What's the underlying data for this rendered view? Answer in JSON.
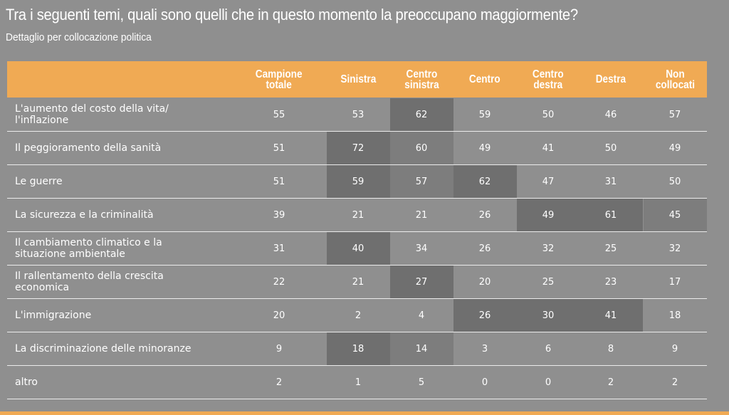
{
  "title": "Tra i seguenti temi, quali sono quelli che in questo momento la preoccupano maggiormente?",
  "subtitle": "Dettaglio per collocazione politica",
  "chart_data": {
    "type": "table",
    "columns": [
      "Campione\ntotale",
      "Sinistra",
      "Centro\nsinistra",
      "Centro",
      "Centro\ndestra",
      "Destra",
      "Non\ncollocati"
    ],
    "rows": [
      {
        "label": "L'aumento del costo della vita/\nl'inflazione",
        "values": [
          55,
          53,
          62,
          59,
          50,
          46,
          57
        ],
        "highlight": [
          0,
          0,
          1,
          0,
          0,
          0,
          0
        ]
      },
      {
        "label": "Il peggioramento della sanità",
        "values": [
          51,
          72,
          60,
          49,
          41,
          50,
          49
        ],
        "highlight": [
          0,
          1,
          2,
          0,
          0,
          0,
          0
        ]
      },
      {
        "label": "Le guerre",
        "values": [
          51,
          59,
          57,
          62,
          47,
          31,
          50
        ],
        "highlight": [
          0,
          1,
          2,
          1,
          0,
          0,
          0
        ]
      },
      {
        "label": "La sicurezza e la criminalità",
        "values": [
          39,
          21,
          21,
          26,
          49,
          61,
          45
        ],
        "highlight": [
          0,
          0,
          0,
          0,
          1,
          1,
          2
        ]
      },
      {
        "label": "Il cambiamento climatico e la\nsituazione ambientale",
        "values": [
          31,
          40,
          34,
          26,
          32,
          25,
          32
        ],
        "highlight": [
          0,
          1,
          0,
          0,
          0,
          0,
          0
        ]
      },
      {
        "label": "Il rallentamento della crescita\neconomica",
        "values": [
          22,
          21,
          27,
          20,
          25,
          23,
          17
        ],
        "highlight": [
          0,
          0,
          1,
          0,
          0,
          0,
          0
        ]
      },
      {
        "label": "L'immigrazione",
        "values": [
          20,
          2,
          4,
          26,
          30,
          41,
          18
        ],
        "highlight": [
          0,
          0,
          0,
          1,
          1,
          1,
          0
        ]
      },
      {
        "label": "La discriminazione delle minoranze",
        "values": [
          9,
          18,
          14,
          3,
          6,
          8,
          9
        ],
        "highlight": [
          0,
          1,
          2,
          0,
          0,
          0,
          0
        ]
      },
      {
        "label": "altro",
        "values": [
          2,
          1,
          5,
          0,
          0,
          2,
          2
        ],
        "highlight": [
          0,
          0,
          0,
          0,
          0,
          0,
          0
        ]
      }
    ]
  },
  "colors": {
    "background": "#8f8f8f",
    "header": "#f0aa54",
    "highlight_dark": "#6f6f6f",
    "highlight_light": "#7d7d7d"
  }
}
